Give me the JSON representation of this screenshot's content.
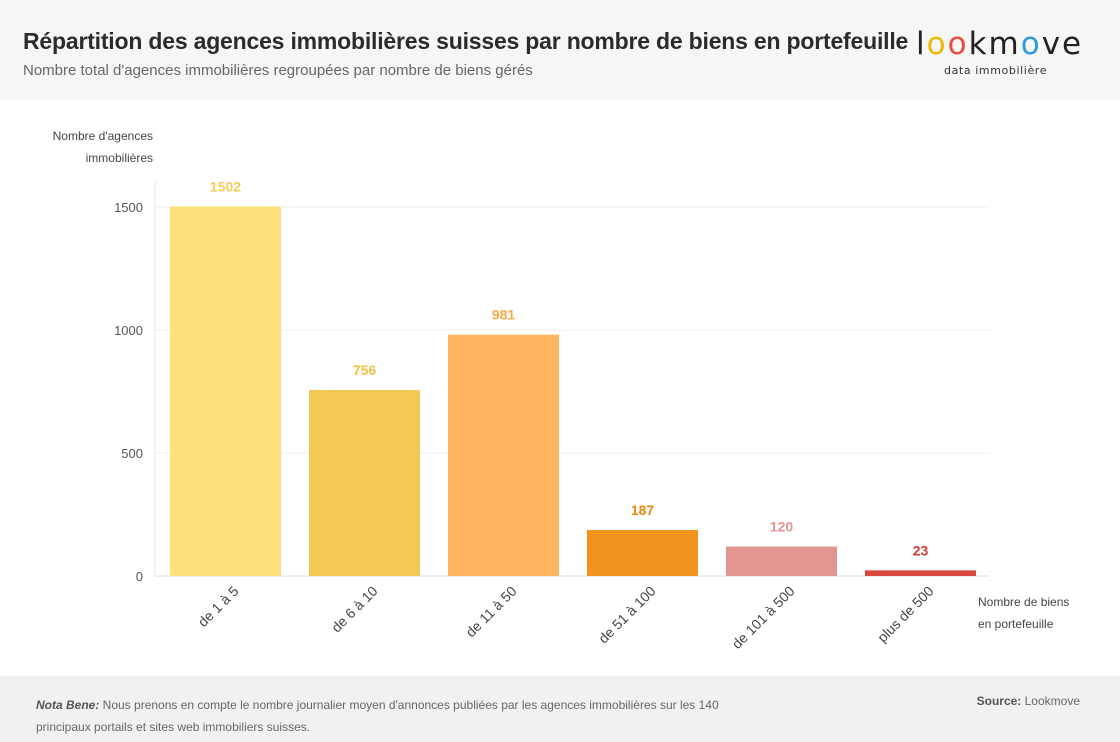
{
  "header": {
    "title": "Répartition des agences immobilières suisses par nombre de biens en portefeuille",
    "subtitle": "Nombre total d'agences immobilières regroupées par nombre de biens gérés"
  },
  "logo": {
    "letters": [
      "l",
      "o",
      "o",
      "k",
      "m",
      "o",
      "v",
      "e"
    ],
    "letter_colors": [
      "#222222",
      "#f2b705",
      "#e74c3c",
      "#222222",
      "#222222",
      "#2e9cd6",
      "#222222",
      "#222222"
    ],
    "tagline": "data immobilière"
  },
  "chart_data": {
    "type": "bar",
    "title": "Répartition des agences immobilières suisses par nombre de biens en portefeuille",
    "ylabel_lines": [
      "Nombre d'agences",
      "immobilières"
    ],
    "xlabel_lines": [
      "Nombre de biens",
      "en portefeuille"
    ],
    "categories": [
      "de 1 à 5",
      "de 6 à 10",
      "de 11 à 50",
      "de 51 à 100",
      "de 101 à 500",
      "plus de 500"
    ],
    "values": [
      1502,
      756,
      981,
      187,
      120,
      23
    ],
    "bar_colors": [
      "#ffdf7a",
      "#f3c954",
      "#ffb45f",
      "#f0941e",
      "#e39590",
      "#d9473f"
    ],
    "label_colors": [
      "#f5cd55",
      "#f0c040",
      "#f7a944",
      "#e58a10",
      "#e39590",
      "#d23a32"
    ],
    "yticks": [
      0,
      500,
      1000,
      1500
    ],
    "ylim": [
      0,
      1600
    ],
    "grid": true
  },
  "footer": {
    "note_label": "Nota Bene:",
    "note_text": " Nous prenons en compte le nombre journalier moyen d'annonces publiées par les agences immobilières sur les 140 principaux portails et sites web immobiliers suisses.",
    "source_label": "Source:",
    "source_value": " Lookmove"
  }
}
